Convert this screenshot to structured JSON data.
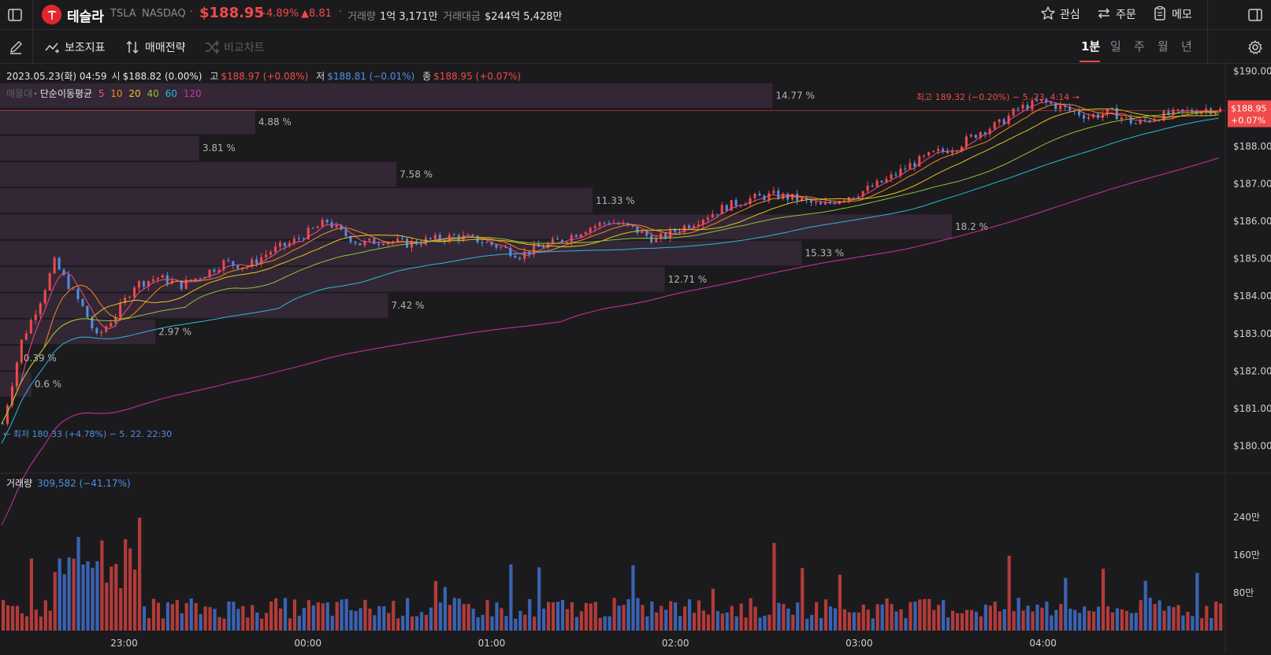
{
  "header": {
    "company": "테슬라",
    "ticker": "TSLA",
    "exchange": "NASDAQ",
    "price": "$188.95",
    "change_pct": "+4.89%",
    "change_abs": "▲8.81",
    "volume_label": "거래량",
    "volume_value": "1억 3,171만",
    "amount_label": "거래대금",
    "amount_value": "$244억 5,428만",
    "watch_label": "관심",
    "order_label": "주문",
    "memo_label": "메모"
  },
  "toolbar": {
    "indicators_label": "보조지표",
    "strategy_label": "매매전략",
    "compare_label": "비교차트",
    "timeframes": [
      {
        "label": "1분",
        "active": true
      },
      {
        "label": "일",
        "active": false
      },
      {
        "label": "주",
        "active": false
      },
      {
        "label": "월",
        "active": false
      },
      {
        "label": "년",
        "active": false
      }
    ]
  },
  "ohlc": {
    "datetime": "2023.05.23(화) 04:59",
    "open_label": "시",
    "open_value": "$188.82 (0.00%)",
    "high_label": "고",
    "high_value": "$188.97 (+0.08%)",
    "low_label": "저",
    "low_value": "$188.81 (−0.01%)",
    "close_label": "종",
    "close_value": "$188.95 (+0.07%)"
  },
  "ma_legend": {
    "profile_label": "매물대",
    "ma_label": "· 단순이동평균",
    "periods": [
      {
        "label": "5",
        "color": "#f04a8c"
      },
      {
        "label": "10",
        "color": "#f28a1f"
      },
      {
        "label": "20",
        "color": "#e8c21e"
      },
      {
        "label": "40",
        "color": "#8cc43b"
      },
      {
        "label": "60",
        "color": "#2fb6dc"
      },
      {
        "label": "120",
        "color": "#d12fa6"
      }
    ]
  },
  "price_axis": [
    "$190.00",
    "$189.00",
    "$188.00",
    "$187.00",
    "$186.00",
    "$185.00",
    "$184.00",
    "$183.00",
    "$182.00",
    "$181.00",
    "$180.00"
  ],
  "current_price_tag": {
    "price": "$188.95",
    "pct": "+0.07%"
  },
  "high_annotation": "최고 189.32 (−0.20%) − 5. 23. 4:14 →",
  "low_annotation": "← 최저 180.33 (+4.78%) − 5. 22. 22:30",
  "volume_panel": {
    "label": "거래량",
    "value": "309,582 (−41.17%)",
    "axis": [
      "240만",
      "160만",
      "80만"
    ]
  },
  "time_axis": [
    "23:00",
    "00:00",
    "01:00",
    "02:00",
    "03:00",
    "04:00"
  ],
  "colors": {
    "up": "#f04a4a",
    "down": "#4f8fe8",
    "background": "#1b1b1d",
    "profile": "#3a2a3c"
  },
  "chart_data": {
    "type": "candlestick",
    "interval": "1분",
    "x_range": [
      "22:20",
      "04:59"
    ],
    "ylim": [
      179.7,
      190.2
    ],
    "volume_profile": [
      {
        "price_low": 189.0,
        "price_high": 189.7,
        "pct": "14.77 %"
      },
      {
        "price_low": 188.3,
        "price_high": 189.0,
        "pct": "4.88 %"
      },
      {
        "price_low": 187.6,
        "price_high": 188.3,
        "pct": "3.81 %"
      },
      {
        "price_low": 186.9,
        "price_high": 187.6,
        "pct": "7.58 %"
      },
      {
        "price_low": 186.2,
        "price_high": 186.9,
        "pct": "11.33 %"
      },
      {
        "price_low": 185.5,
        "price_high": 186.2,
        "pct": "18.2 %"
      },
      {
        "price_low": 184.8,
        "price_high": 185.5,
        "pct": "15.33 %"
      },
      {
        "price_low": 184.1,
        "price_high": 184.8,
        "pct": "12.71 %"
      },
      {
        "price_low": 183.4,
        "price_high": 184.1,
        "pct": "7.42 %"
      },
      {
        "price_low": 182.7,
        "price_high": 183.4,
        "pct": "2.97 %"
      },
      {
        "price_low": 182.0,
        "price_high": 182.7,
        "pct": "0.39 %"
      },
      {
        "price_low": 181.3,
        "price_high": 182.0,
        "pct": "0.6 %"
      }
    ],
    "close_path": [
      [
        0,
        180.6
      ],
      [
        4,
        182.8
      ],
      [
        8,
        183.9
      ],
      [
        11,
        184.9
      ],
      [
        14,
        184.3
      ],
      [
        17,
        183.7
      ],
      [
        20,
        182.9
      ],
      [
        24,
        183.5
      ],
      [
        28,
        184.3
      ],
      [
        33,
        184.5
      ],
      [
        38,
        184.3
      ],
      [
        43,
        184.6
      ],
      [
        47,
        184.9
      ],
      [
        52,
        184.8
      ],
      [
        57,
        185.2
      ],
      [
        61,
        185.4
      ],
      [
        65,
        185.7
      ],
      [
        69,
        186.0
      ],
      [
        72,
        185.7
      ],
      [
        76,
        185.4
      ],
      [
        81,
        185.5
      ],
      [
        86,
        185.4
      ],
      [
        91,
        185.5
      ],
      [
        96,
        185.6
      ],
      [
        101,
        185.5
      ],
      [
        106,
        185.3
      ],
      [
        110,
        185.1
      ],
      [
        114,
        185.3
      ],
      [
        119,
        185.5
      ],
      [
        124,
        185.8
      ],
      [
        129,
        186.0
      ],
      [
        134,
        185.8
      ],
      [
        139,
        185.5
      ],
      [
        144,
        185.8
      ],
      [
        149,
        186.1
      ],
      [
        154,
        186.4
      ],
      [
        159,
        186.6
      ],
      [
        164,
        186.7
      ],
      [
        169,
        186.6
      ],
      [
        174,
        186.4
      ],
      [
        178,
        186.6
      ],
      [
        183,
        186.8
      ],
      [
        188,
        187.1
      ],
      [
        193,
        187.5
      ],
      [
        198,
        187.8
      ],
      [
        203,
        188.0
      ],
      [
        208,
        188.4
      ],
      [
        212,
        188.6
      ],
      [
        216,
        189.0
      ],
      [
        221,
        189.2
      ],
      [
        226,
        189.0
      ],
      [
        231,
        188.8
      ],
      [
        236,
        188.9
      ],
      [
        241,
        188.6
      ],
      [
        246,
        188.8
      ],
      [
        251,
        188.9
      ],
      [
        256,
        189.0
      ],
      [
        260,
        188.95
      ]
    ],
    "volume_bars": 260,
    "volume_ylim": [
      0,
      3000000
    ]
  }
}
